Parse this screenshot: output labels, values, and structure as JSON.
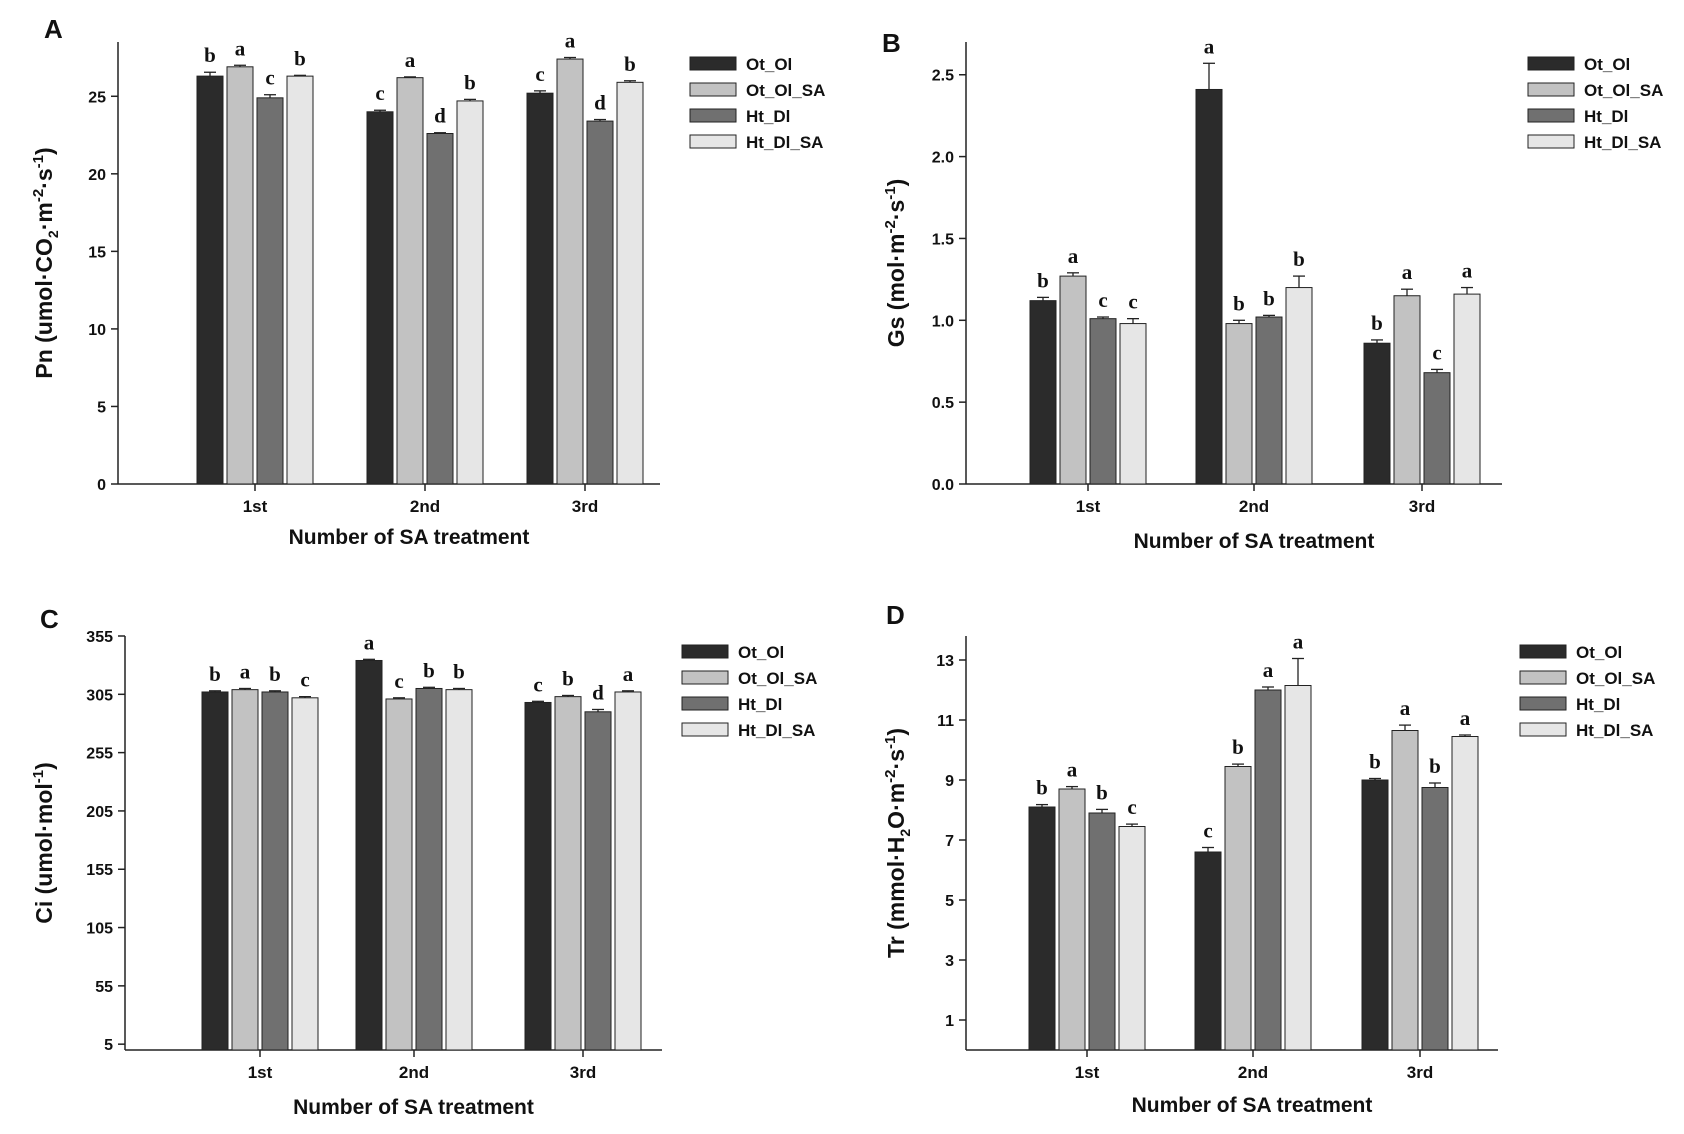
{
  "figure": {
    "series_colors": {
      "Ot_Ol": "#2b2b2b",
      "Ot_Ol_SA": "#c2c2c2",
      "Ht_Dl": "#707070",
      "Ht_Dl_SA": "#e6e6e6"
    }
  },
  "chart_data": [
    {
      "panel": "A",
      "type": "bar",
      "title": "",
      "xlabel": "Number of SA treatment",
      "ylabel_main": "Pn (umol·CO",
      "ylabel_sub": "2",
      "ylabel_mid": "·m",
      "ylabel_sup1": "-2",
      "ylabel_after": "·s",
      "ylabel_sup2": "-1",
      "ylabel_end": ")",
      "categories": [
        "1st",
        "2nd",
        "3rd"
      ],
      "ylim": [
        0,
        28.5
      ],
      "yticks": [
        0,
        5,
        10,
        15,
        20,
        25
      ],
      "ytick_labels": [
        "0",
        "5",
        "10",
        "15",
        "20",
        "25"
      ],
      "legend": [
        "Ot_Ol",
        "Ot_Ol_SA",
        "Ht_Dl",
        "Ht_Dl_SA"
      ],
      "series": [
        {
          "name": "Ot_Ol",
          "values": [
            26.3,
            24.0,
            25.2
          ],
          "errors": [
            0.25,
            0.1,
            0.15
          ],
          "letters": [
            "b",
            "c",
            "c"
          ]
        },
        {
          "name": "Ot_Ol_SA",
          "values": [
            26.9,
            26.2,
            27.4
          ],
          "errors": [
            0.1,
            0.05,
            0.1
          ],
          "letters": [
            "a",
            "a",
            "a"
          ]
        },
        {
          "name": "Ht_Dl",
          "values": [
            24.9,
            22.6,
            23.4
          ],
          "errors": [
            0.2,
            0.05,
            0.1
          ],
          "letters": [
            "c",
            "d",
            "d"
          ]
        },
        {
          "name": "Ht_Dl_SA",
          "values": [
            26.3,
            24.7,
            25.9
          ],
          "errors": [
            0.05,
            0.1,
            0.1
          ],
          "letters": [
            "b",
            "b",
            "b"
          ]
        }
      ]
    },
    {
      "panel": "B",
      "type": "bar",
      "title": "",
      "xlabel": "Number of SA treatment",
      "ylabel_main": "Gs (mol·m",
      "ylabel_sub": "",
      "ylabel_mid": "",
      "ylabel_sup1": "-2",
      "ylabel_after": "·s",
      "ylabel_sup2": "-1",
      "ylabel_end": ")",
      "categories": [
        "1st",
        "2nd",
        "3rd"
      ],
      "ylim": [
        0,
        2.7
      ],
      "yticks": [
        0,
        0.5,
        1.0,
        1.5,
        2.0,
        2.5
      ],
      "ytick_labels": [
        "0.0",
        "0.5",
        "1.0",
        "1.5",
        "2.0",
        "2.5"
      ],
      "legend": [
        "Ot_Ol",
        "Ot_Ol_SA",
        "Ht_Dl",
        "Ht_Dl_SA"
      ],
      "series": [
        {
          "name": "Ot_Ol",
          "values": [
            1.12,
            2.41,
            0.86
          ],
          "errors": [
            0.02,
            0.16,
            0.02
          ],
          "letters": [
            "b",
            "a",
            "b"
          ]
        },
        {
          "name": "Ot_Ol_SA",
          "values": [
            1.27,
            0.98,
            1.15
          ],
          "errors": [
            0.02,
            0.02,
            0.04
          ],
          "letters": [
            "a",
            "b",
            "a"
          ]
        },
        {
          "name": "Ht_Dl",
          "values": [
            1.01,
            1.02,
            0.68
          ],
          "errors": [
            0.01,
            0.01,
            0.02
          ],
          "letters": [
            "c",
            "b",
            "c"
          ]
        },
        {
          "name": "Ht_Dl_SA",
          "values": [
            0.98,
            1.2,
            1.16
          ],
          "errors": [
            0.03,
            0.07,
            0.04
          ],
          "letters": [
            "c",
            "b",
            "a"
          ]
        }
      ]
    },
    {
      "panel": "C",
      "type": "bar",
      "title": "",
      "xlabel": "Number of SA treatment",
      "ylabel_main": "Ci (umol·mol",
      "ylabel_sub": "",
      "ylabel_mid": "",
      "ylabel_sup1": "-1",
      "ylabel_after": "",
      "ylabel_sup2": "",
      "ylabel_end": ")",
      "categories": [
        "1st",
        "2nd",
        "3rd"
      ],
      "ylim": [
        0,
        355
      ],
      "yticks": [
        5,
        55,
        105,
        155,
        205,
        255,
        305,
        355
      ],
      "ytick_labels": [
        "5",
        "55",
        "105",
        "155",
        "205",
        "255",
        "305",
        "355"
      ],
      "legend": [
        "Ot_Ol",
        "Ot_Ol_SA",
        "Ht_Dl",
        "Ht_Dl_SA"
      ],
      "series": [
        {
          "name": "Ot_Ol",
          "values": [
            307,
            334,
            298
          ],
          "errors": [
            1,
            1,
            1
          ],
          "letters": [
            "b",
            "a",
            "c"
          ]
        },
        {
          "name": "Ot_Ol_SA",
          "values": [
            309,
            301,
            303
          ],
          "errors": [
            1,
            1,
            1
          ],
          "letters": [
            "a",
            "c",
            "b"
          ]
        },
        {
          "name": "Ht_Dl",
          "values": [
            307,
            310,
            290
          ],
          "errors": [
            1,
            1,
            2
          ],
          "letters": [
            "b",
            "b",
            "d"
          ]
        },
        {
          "name": "Ht_Dl_SA",
          "values": [
            302,
            309,
            307
          ],
          "errors": [
            1,
            1,
            1
          ],
          "letters": [
            "c",
            "b",
            "a"
          ]
        }
      ]
    },
    {
      "panel": "D",
      "type": "bar",
      "title": "",
      "xlabel": "Number of SA treatment",
      "ylabel_main": "Tr (mmol·H",
      "ylabel_sub": "2",
      "ylabel_mid": "O·m",
      "ylabel_sup1": "-2",
      "ylabel_after": "·s",
      "ylabel_sup2": "-1",
      "ylabel_end": ")",
      "categories": [
        "1st",
        "2nd",
        "3rd"
      ],
      "ylim": [
        0,
        13.8
      ],
      "yticks": [
        1,
        3,
        5,
        7,
        9,
        11,
        13
      ],
      "ytick_labels": [
        "1",
        "3",
        "5",
        "7",
        "9",
        "11",
        "13"
      ],
      "legend": [
        "Ot_Ol",
        "Ot_Ol_SA",
        "Ht_Dl",
        "Ht_Dl_SA"
      ],
      "series": [
        {
          "name": "Ot_Ol",
          "values": [
            8.1,
            6.6,
            9.0
          ],
          "errors": [
            0.08,
            0.15,
            0.05
          ],
          "letters": [
            "b",
            "c",
            "b"
          ]
        },
        {
          "name": "Ot_Ol_SA",
          "values": [
            8.7,
            9.45,
            10.65
          ],
          "errors": [
            0.08,
            0.08,
            0.18
          ],
          "letters": [
            "a",
            "b",
            "a"
          ]
        },
        {
          "name": "Ht_Dl",
          "values": [
            7.9,
            12.0,
            8.75
          ],
          "errors": [
            0.12,
            0.1,
            0.15
          ],
          "letters": [
            "b",
            "a",
            "b"
          ]
        },
        {
          "name": "Ht_Dl_SA",
          "values": [
            7.45,
            12.15,
            10.45
          ],
          "errors": [
            0.08,
            0.9,
            0.05
          ],
          "letters": [
            "c",
            "a",
            "a"
          ]
        }
      ]
    }
  ]
}
